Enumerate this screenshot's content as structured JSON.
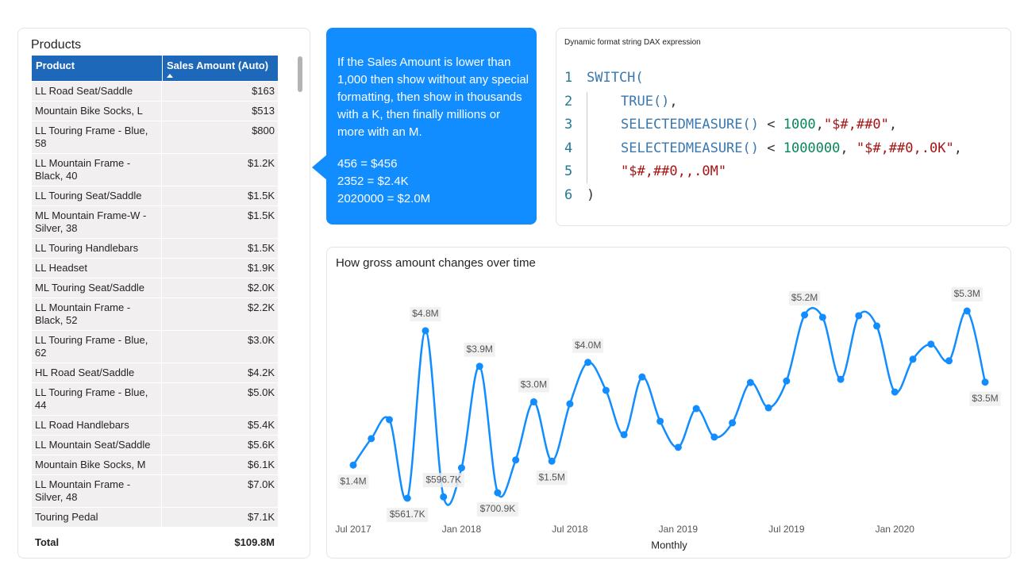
{
  "table": {
    "title": "Products",
    "columns": [
      "Product",
      "Sales Amount (Auto)"
    ],
    "rows": [
      [
        "LL Road Seat/Saddle",
        "$163"
      ],
      [
        "Mountain Bike Socks, L",
        "$513"
      ],
      [
        "LL Touring Frame - Blue, 58",
        "$800"
      ],
      [
        "LL Mountain Frame - Black, 40",
        "$1.2K"
      ],
      [
        "LL Touring Seat/Saddle",
        "$1.5K"
      ],
      [
        "ML Mountain Frame-W - Silver, 38",
        "$1.5K"
      ],
      [
        "LL Touring Handlebars",
        "$1.5K"
      ],
      [
        "LL Headset",
        "$1.9K"
      ],
      [
        "ML Touring Seat/Saddle",
        "$2.0K"
      ],
      [
        "LL Mountain Frame - Black, 52",
        "$2.2K"
      ],
      [
        "LL Touring Frame - Blue, 62",
        "$3.0K"
      ],
      [
        "HL Road Seat/Saddle",
        "$4.2K"
      ],
      [
        "LL Touring Frame - Blue, 44",
        "$5.0K"
      ],
      [
        "LL Road Handlebars",
        "$5.4K"
      ],
      [
        "LL Mountain Seat/Saddle",
        "$5.6K"
      ],
      [
        "Mountain Bike Socks, M",
        "$6.1K"
      ],
      [
        "LL Mountain Frame - Silver, 48",
        "$7.0K"
      ],
      [
        "Touring Pedal",
        "$7.1K"
      ]
    ],
    "total": [
      "Total",
      "$109.8M"
    ]
  },
  "callout": {
    "text": "If the Sales Amount is lower than 1,000 then show without any special formatting, then show in thousands with a K, then finally millions or more with an M.",
    "examples": [
      "456 = $456",
      "2352 = $2.4K",
      "2020000 = $2.0M"
    ]
  },
  "code": {
    "title": "Dynamic format string DAX expression",
    "lines": [
      {
        "number": 1,
        "tokens": [
          {
            "text": "SWITCH(",
            "color": "#3a78b0"
          }
        ]
      },
      {
        "number": 2,
        "tokens": [
          {
            "text": "TRUE()",
            "color": "#3a78b0"
          },
          {
            "text": ",",
            "color": "#333333"
          }
        ]
      },
      {
        "number": 3,
        "tokens": [
          {
            "text": "SELECTEDMEASURE()",
            "color": "#3a78b0"
          },
          {
            "text": " < ",
            "color": "#333333"
          },
          {
            "text": "1000",
            "color": "#098658"
          },
          {
            "text": ",",
            "color": "#333333"
          },
          {
            "text": "\"$#,##0\"",
            "color": "#a31515"
          },
          {
            "text": ",",
            "color": "#333333"
          }
        ]
      },
      {
        "number": 4,
        "tokens": [
          {
            "text": "SELECTEDMEASURE()",
            "color": "#3a78b0"
          },
          {
            "text": " < ",
            "color": "#333333"
          },
          {
            "text": "1000000",
            "color": "#098658"
          },
          {
            "text": ", ",
            "color": "#333333"
          },
          {
            "text": "\"$#,##0,.0K\"",
            "color": "#a31515"
          },
          {
            "text": ",",
            "color": "#333333"
          }
        ]
      },
      {
        "number": 5,
        "tokens": [
          {
            "text": "\"$#,##0,,.0M\"",
            "color": "#a31515"
          }
        ]
      },
      {
        "number": 6,
        "tokens": [
          {
            "text": ")",
            "color": "#333333"
          }
        ]
      }
    ]
  },
  "chart_data": {
    "type": "line",
    "title": "How gross amount changes over time",
    "x_label": "Monthly",
    "color": "#118dff",
    "categories": [
      "Jul 2017",
      null,
      null,
      null,
      null,
      null,
      "Jan 2018",
      null,
      null,
      null,
      null,
      null,
      "Jul 2018",
      null,
      null,
      null,
      null,
      null,
      "Jan 2019",
      null,
      null,
      null,
      null,
      null,
      "Jul 2019",
      null,
      null,
      null,
      null,
      null,
      "Jan 2020",
      null,
      null,
      null,
      null,
      null
    ],
    "values": [
      1400000,
      2070000,
      2550000,
      561700,
      4800000,
      596700,
      1330000,
      3900000,
      700900,
      1530000,
      3000000,
      1500000,
      2950000,
      4000000,
      3290000,
      2170000,
      3630000,
      2510000,
      1850000,
      2830000,
      2110000,
      2470000,
      3490000,
      2850000,
      3530000,
      5200000,
      5140000,
      3570000,
      5180000,
      4920000,
      3250000,
      4080000,
      4460000,
      4040000,
      5300000,
      3500000
    ],
    "value_labels": [
      "$1.4M",
      null,
      null,
      "$561.7K",
      "$4.8M",
      "$596.7K",
      null,
      "$3.9M",
      "$700.9K",
      null,
      "$3.0M",
      "$1.5M",
      null,
      "$4.0M",
      null,
      null,
      null,
      null,
      null,
      null,
      null,
      null,
      null,
      null,
      null,
      "$5.2M",
      null,
      null,
      null,
      null,
      null,
      null,
      null,
      null,
      "$5.3M",
      "$3.5M"
    ]
  }
}
